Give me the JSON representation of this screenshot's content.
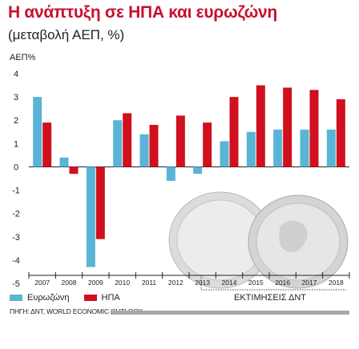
{
  "header": {
    "title": "Η ανάπτυξη σε ΗΠΑ και ευρωζώνη",
    "subtitle": "(μεταβολή ΑΕΠ, %)"
  },
  "chart_data": {
    "type": "bar",
    "ylabel": "ΑΕΠ%",
    "ylim": [
      -5,
      4
    ],
    "yticks": [
      "4",
      "3",
      "2",
      "1",
      "0",
      "-1",
      "-2",
      "-3",
      "-4",
      "-5"
    ],
    "categories": [
      "2007",
      "2008",
      "2009",
      "2010",
      "2011",
      "2012",
      "2013",
      "2014",
      "2015",
      "2016",
      "2017",
      "2018"
    ],
    "series": [
      {
        "name": "Ευρωζώνη",
        "color": "#5ab4d6",
        "values": [
          3.0,
          0.4,
          -4.3,
          2.0,
          1.4,
          -0.6,
          -0.3,
          1.1,
          1.5,
          1.6,
          1.6,
          1.6
        ]
      },
      {
        "name": "ΗΠΑ",
        "color": "#d0101e",
        "values": [
          1.9,
          -0.3,
          -3.1,
          2.3,
          1.8,
          2.2,
          1.9,
          3.0,
          3.5,
          3.4,
          3.3,
          2.9
        ]
      }
    ],
    "grid": false,
    "legend_placement": "bottom-left",
    "annotation": "ΕΚΤΙΜΗΣΕΙΣ ΔΝΤ"
  },
  "legend": {
    "eurozone_label": "Ευρωζώνη",
    "usa_label": "ΗΠΑ"
  },
  "estimates_label": "ΕΚΤΙΜΗΣΕΙΣ ΔΝΤ",
  "source": "ΠΗΓΗ: ΔΝΤ, WORLD ECONOMIC OUTLOOK"
}
